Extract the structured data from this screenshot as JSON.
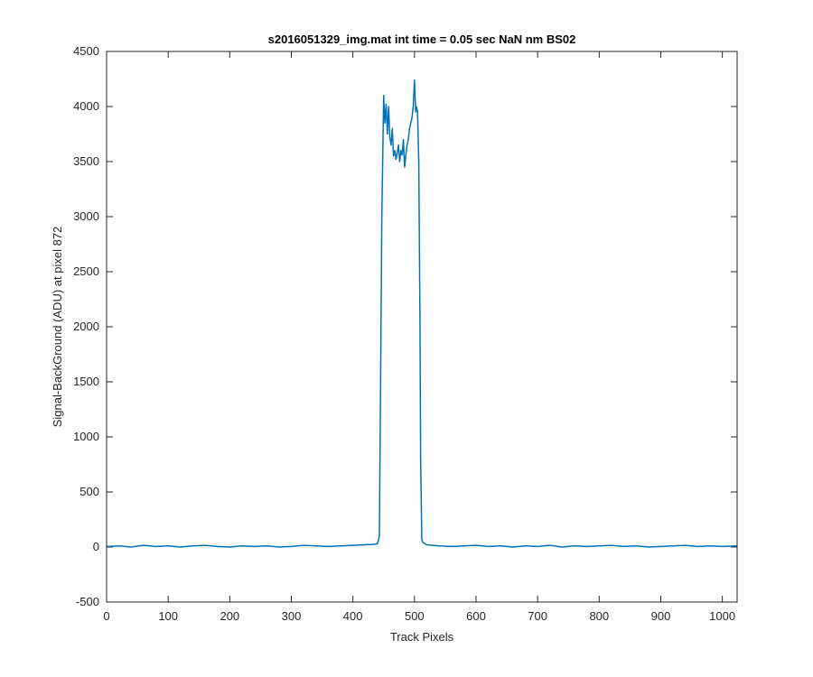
{
  "chart_data": {
    "type": "line",
    "title": "s2016051329_img.mat int time = 0.05 sec  NaN nm BS02",
    "xlabel": "Track Pixels",
    "ylabel": "Signal-BackGround (ADU) at pixel 872",
    "xlim": [
      0,
      1024
    ],
    "ylim": [
      -500,
      4500
    ],
    "xticks": [
      0,
      100,
      200,
      300,
      400,
      500,
      600,
      700,
      800,
      900,
      1000
    ],
    "yticks": [
      -500,
      0,
      500,
      1000,
      1500,
      2000,
      2500,
      3000,
      3500,
      4000,
      4500
    ],
    "grid": false,
    "legend": "none",
    "line_color": "#0072BD",
    "series": [
      {
        "x": [
          0,
          20,
          40,
          60,
          80,
          100,
          120,
          140,
          160,
          180,
          200,
          220,
          240,
          260,
          280,
          300,
          320,
          340,
          360,
          380,
          400,
          420,
          435,
          440,
          443,
          445,
          447,
          450,
          452,
          454,
          456,
          458,
          460,
          462,
          464,
          466,
          468,
          470,
          472,
          474,
          476,
          478,
          480,
          482,
          484,
          486,
          488,
          490,
          492,
          494,
          496,
          498,
          500,
          502,
          503,
          505,
          507,
          509,
          510,
          512,
          514,
          517,
          520,
          530,
          540,
          560,
          580,
          600,
          620,
          640,
          660,
          680,
          700,
          720,
          740,
          760,
          780,
          800,
          820,
          840,
          860,
          880,
          900,
          920,
          940,
          960,
          980,
          1000,
          1024
        ],
        "y": [
          5,
          10,
          0,
          15,
          5,
          10,
          0,
          10,
          15,
          5,
          0,
          10,
          5,
          10,
          0,
          5,
          15,
          10,
          5,
          10,
          15,
          20,
          25,
          30,
          100,
          1500,
          3000,
          4100,
          3850,
          4020,
          3750,
          4000,
          3720,
          3650,
          3800,
          3550,
          3600,
          3520,
          3580,
          3650,
          3500,
          3600,
          3560,
          3700,
          3450,
          3560,
          3650,
          3700,
          3800,
          3850,
          3900,
          4000,
          4240,
          3950,
          4000,
          3950,
          3500,
          2000,
          800,
          60,
          40,
          30,
          20,
          15,
          10,
          5,
          10,
          15,
          5,
          10,
          0,
          10,
          5,
          15,
          0,
          10,
          5,
          10,
          15,
          5,
          10,
          0,
          5,
          10,
          15,
          5,
          10,
          5,
          10
        ]
      }
    ]
  }
}
